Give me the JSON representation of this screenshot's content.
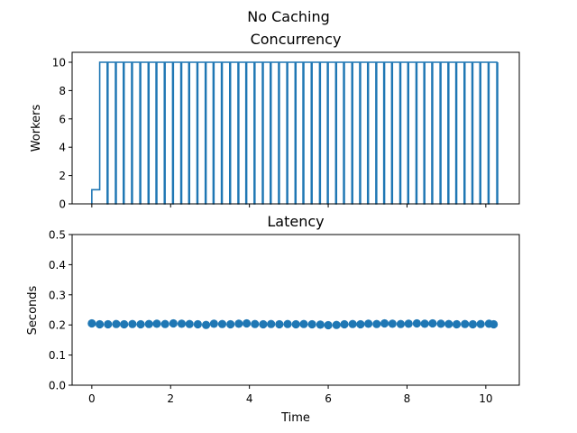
{
  "figure_title": "No Caching",
  "colors": {
    "series": "#1f77b4",
    "axis": "#000000",
    "background": "#ffffff"
  },
  "chart_data": [
    {
      "type": "line",
      "subtype": "step",
      "title": "Concurrency",
      "xlabel": "",
      "ylabel": "Workers",
      "xlim": [
        -0.5,
        10.85
      ],
      "ylim": [
        0,
        10.7
      ],
      "x_ticks": [
        0,
        2,
        4,
        6,
        8,
        10
      ],
      "x_tick_labels_shown": false,
      "y_ticks": [
        0,
        2,
        4,
        6,
        8,
        10
      ],
      "y_tick_labels": [
        "0",
        "2",
        "4",
        "6",
        "8",
        "10"
      ],
      "grid": false,
      "legend": "none",
      "series": [
        {
          "step_times": [
            0,
            0.2,
            0.41,
            0.62,
            0.82,
            1.03,
            1.24,
            1.45,
            1.65,
            1.86,
            2.07,
            2.28,
            2.48,
            2.69,
            2.9,
            3.1,
            3.31,
            3.52,
            3.73,
            3.93,
            4.14,
            4.35,
            4.55,
            4.76,
            4.97,
            5.18,
            5.38,
            5.59,
            5.8,
            6.0,
            6.21,
            6.41,
            6.62,
            6.82,
            7.02,
            7.23,
            7.43,
            7.63,
            7.84,
            8.04,
            8.25,
            8.45,
            8.65,
            8.86,
            9.06,
            9.26,
            9.47,
            9.67,
            9.87,
            10.08,
            10.3
          ],
          "levels": [
            1,
            10,
            0,
            10,
            0,
            10,
            0,
            10,
            0,
            10,
            0,
            10,
            0,
            10,
            0,
            10,
            0,
            10,
            0,
            10,
            0,
            10,
            0,
            10,
            0,
            10,
            0,
            10,
            0,
            10,
            0,
            10,
            0,
            10,
            0,
            10,
            0,
            10,
            0,
            10,
            0,
            10,
            0,
            10,
            0,
            10,
            0,
            10,
            0,
            10,
            0,
            10,
            0,
            10,
            0,
            10,
            0,
            10,
            0,
            10,
            0,
            10,
            0,
            10,
            0,
            10,
            0,
            10,
            0,
            10,
            0,
            10,
            0,
            10,
            0,
            10,
            0,
            10,
            0,
            10,
            0,
            10,
            0,
            10,
            0,
            10,
            0,
            10,
            0,
            10,
            0,
            10,
            0,
            10,
            0,
            10,
            0,
            10,
            0,
            10,
            0
          ]
        }
      ]
    },
    {
      "type": "scatter",
      "title": "Latency",
      "xlabel": "Time",
      "ylabel": "Seconds",
      "xlim": [
        -0.5,
        10.85
      ],
      "ylim": [
        0,
        0.5
      ],
      "x_ticks": [
        0,
        2,
        4,
        6,
        8,
        10
      ],
      "x_tick_labels": [
        "0",
        "2",
        "4",
        "6",
        "8",
        "10"
      ],
      "y_ticks": [
        0,
        0.1,
        0.2,
        0.3,
        0.4,
        0.5
      ],
      "y_tick_labels": [
        "0.0",
        "0.1",
        "0.2",
        "0.3",
        "0.4",
        "0.5"
      ],
      "grid": false,
      "legend": "none",
      "series": [
        {
          "x": [
            0.0,
            0.2,
            0.41,
            0.62,
            0.82,
            1.03,
            1.24,
            1.45,
            1.65,
            1.86,
            2.07,
            2.28,
            2.48,
            2.69,
            2.9,
            3.1,
            3.31,
            3.52,
            3.73,
            3.93,
            4.14,
            4.35,
            4.55,
            4.76,
            4.97,
            5.18,
            5.38,
            5.59,
            5.8,
            6.0,
            6.21,
            6.41,
            6.62,
            6.82,
            7.02,
            7.23,
            7.43,
            7.63,
            7.84,
            8.04,
            8.25,
            8.45,
            8.65,
            8.86,
            9.06,
            9.26,
            9.47,
            9.67,
            9.87,
            10.08,
            10.2
          ],
          "y": [
            0.205,
            0.202,
            0.202,
            0.203,
            0.202,
            0.203,
            0.202,
            0.203,
            0.204,
            0.203,
            0.205,
            0.204,
            0.203,
            0.202,
            0.2,
            0.204,
            0.203,
            0.202,
            0.204,
            0.205,
            0.203,
            0.202,
            0.203,
            0.202,
            0.203,
            0.202,
            0.203,
            0.202,
            0.201,
            0.199,
            0.2,
            0.202,
            0.203,
            0.202,
            0.204,
            0.203,
            0.205,
            0.204,
            0.203,
            0.204,
            0.205,
            0.204,
            0.205,
            0.204,
            0.203,
            0.202,
            0.203,
            0.202,
            0.203,
            0.204,
            0.202
          ]
        }
      ]
    }
  ]
}
